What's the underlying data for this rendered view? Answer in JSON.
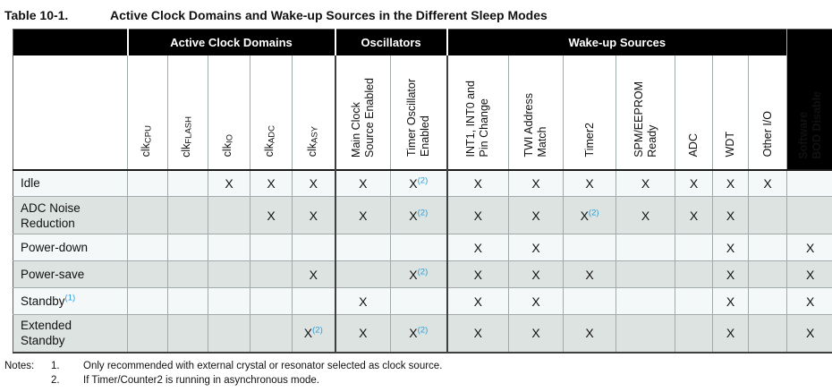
{
  "title": {
    "label": "Table 10-1.",
    "text": "Active Clock Domains and Wake-up Sources in the Different Sleep Modes"
  },
  "table": {
    "groups": [
      {
        "label": "",
        "span": 1
      },
      {
        "label": "Active Clock Domains",
        "span": 5
      },
      {
        "label": "Oscillators",
        "span": 2
      },
      {
        "label": "Wake-up Sources",
        "span": 7
      }
    ],
    "columns": [
      {
        "key": "clk-cpu",
        "base": "clk",
        "sub": "CPU"
      },
      {
        "key": "clk-flash",
        "base": "clk",
        "sub": "FLASH"
      },
      {
        "key": "clk-io",
        "base": "clk",
        "sub": "IO"
      },
      {
        "key": "clk-adc",
        "base": "clk",
        "sub": "ADC"
      },
      {
        "key": "clk-asy",
        "base": "clk",
        "sub": "ASY"
      },
      {
        "key": "main-clock-source-enabled",
        "label": "Main Clock\nSource Enabled"
      },
      {
        "key": "timer-oscillator-enabled",
        "label": "Timer Oscillator\nEnabled"
      },
      {
        "key": "int1-int0-pin-change",
        "label": "INT1, INT0 and\nPin Change"
      },
      {
        "key": "twi-address-match",
        "label": "TWI Address\nMatch"
      },
      {
        "key": "timer2",
        "label": "Timer2"
      },
      {
        "key": "spm-eeprom-ready",
        "label": "SPM/EEPROM\nReady"
      },
      {
        "key": "adc",
        "label": "ADC"
      },
      {
        "key": "wdt",
        "label": "WDT"
      },
      {
        "key": "other-io",
        "label": "Other I/O"
      },
      {
        "key": "software-bod-disable",
        "label": "Software\nBOD Disable"
      }
    ],
    "rows": [
      {
        "key": "idle",
        "label": "Idle",
        "note": "",
        "cells": [
          "",
          "",
          "X",
          "X",
          "X",
          "X",
          "X(2)",
          "X",
          "X",
          "X",
          "X",
          "X",
          "X",
          "X",
          ""
        ]
      },
      {
        "key": "adc-noise-reduction",
        "label": "ADC Noise\nReduction",
        "note": "",
        "cells": [
          "",
          "",
          "",
          "X",
          "X",
          "X",
          "X(2)",
          "X",
          "X",
          "X(2)",
          "X",
          "X",
          "X",
          "",
          ""
        ]
      },
      {
        "key": "power-down",
        "label": "Power-down",
        "note": "",
        "cells": [
          "",
          "",
          "",
          "",
          "",
          "",
          "",
          "X",
          "X",
          "",
          "",
          "",
          "X",
          "",
          "X"
        ]
      },
      {
        "key": "power-save",
        "label": "Power-save",
        "note": "",
        "cells": [
          "",
          "",
          "",
          "",
          "X",
          "",
          "X(2)",
          "X",
          "X",
          "X",
          "",
          "",
          "X",
          "",
          "X"
        ]
      },
      {
        "key": "standby",
        "label": "Standby",
        "note": "(1)",
        "cells": [
          "",
          "",
          "",
          "",
          "",
          "X",
          "",
          "X",
          "X",
          "",
          "",
          "",
          "X",
          "",
          "X"
        ]
      },
      {
        "key": "extended-standby",
        "label": "Extended\nStandby",
        "note": "",
        "cells": [
          "",
          "",
          "",
          "",
          "X(2)",
          "X",
          "X(2)",
          "X",
          "X",
          "X",
          "",
          "",
          "X",
          "",
          "X"
        ]
      }
    ]
  },
  "notes": {
    "heading": "Notes:",
    "items": [
      {
        "num": "1.",
        "text": "Only recommended with external crystal or resonator selected as clock source."
      },
      {
        "num": "2.",
        "text": "If Timer/Counter2 is running in asynchronous mode."
      }
    ]
  },
  "colors": {
    "header_band": "#000000",
    "note_ref_blue": "#2d9fd8",
    "row_light": "#f4f8f8",
    "row_shaded": "#dde3e1",
    "grid_line": "#a2a9a9"
  }
}
